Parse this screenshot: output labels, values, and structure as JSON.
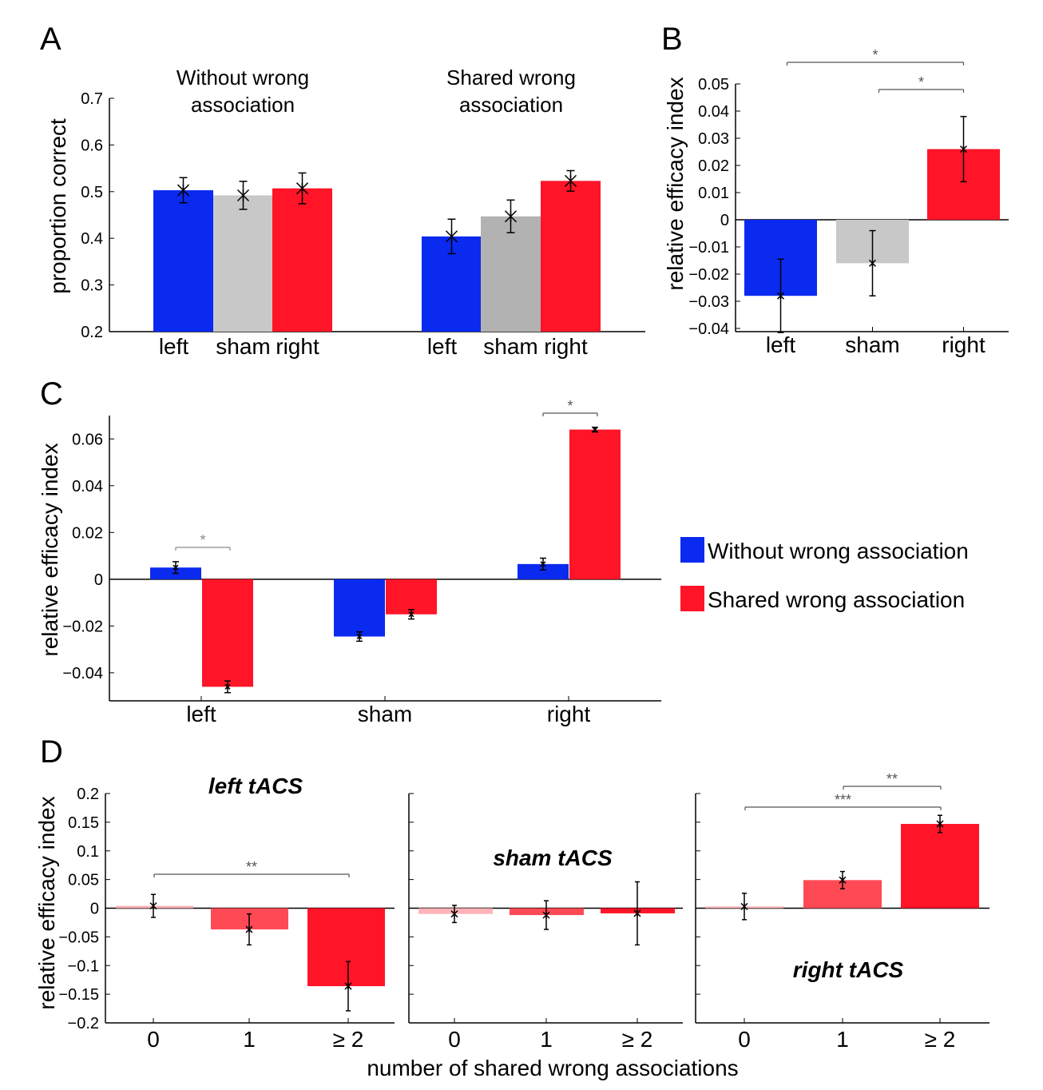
{
  "colors": {
    "blue": "#0A2AF0",
    "gray_light": "#C8C8C8",
    "gray_dark": "#B2B2B2",
    "red": "#FF1428",
    "red_mid": "#FF4A55",
    "red_light": "#FFB3B8",
    "sig_gray": "#8A8A8A"
  },
  "legend": [
    {
      "label": "Without wrong association",
      "color": "#0A2AF0"
    },
    {
      "label": "Shared wrong association",
      "color": "#FF1428"
    }
  ],
  "chart_data": [
    {
      "panel": "A",
      "type": "bar",
      "ylabel": "proportion correct",
      "ylim": [
        0.2,
        0.7
      ],
      "yticks": [
        "0.2",
        "0.3",
        "0.4",
        "0.5",
        "0.6",
        "0.7"
      ],
      "ytick_values": [
        0.2,
        0.3,
        0.4,
        0.5,
        0.6,
        0.7
      ],
      "groups": [
        {
          "title": [
            "Without wrong",
            "association"
          ],
          "categories": [
            "left",
            "sham",
            "right"
          ],
          "values": [
            0.503,
            0.492,
            0.507
          ],
          "errors": [
            0.027,
            0.03,
            0.033
          ],
          "colors": [
            "#0A2AF0",
            "#C8C8C8",
            "#FF1428"
          ]
        },
        {
          "title": [
            "Shared wrong",
            "association"
          ],
          "categories": [
            "left",
            "sham",
            "right"
          ],
          "values": [
            0.404,
            0.447,
            0.523
          ],
          "errors": [
            0.037,
            0.035,
            0.022
          ],
          "colors": [
            "#0A2AF0",
            "#B2B2B2",
            "#FF1428"
          ]
        }
      ]
    },
    {
      "panel": "B",
      "type": "bar",
      "ylabel": "relative efficacy index",
      "ylim": [
        -0.04,
        0.05
      ],
      "yticks": [
        "0.05",
        "0.04",
        "0.03",
        "0.02",
        "0.01",
        "0",
        "−0.01",
        "−0.02",
        "−0.03",
        "−0.04"
      ],
      "ytick_values": [
        0.05,
        0.04,
        0.03,
        0.02,
        0.01,
        0,
        -0.01,
        -0.02,
        -0.03,
        -0.04
      ],
      "categories": [
        "left",
        "sham",
        "right"
      ],
      "values": [
        -0.028,
        -0.016,
        0.026
      ],
      "errors": [
        0.0135,
        0.012,
        0.012
      ],
      "colors": [
        "#0A2AF0",
        "#C8C8C8",
        "#FF1428"
      ],
      "significance": [
        {
          "from": "left",
          "to": "right",
          "label": "*"
        },
        {
          "from": "sham",
          "to": "right",
          "label": "*"
        }
      ]
    },
    {
      "panel": "C",
      "type": "bar",
      "ylabel": "relative efficacy index",
      "ylim": [
        -0.052,
        0.07
      ],
      "yticks": [
        "0.06",
        "0.04",
        "0.02",
        "0",
        "−0.02",
        "−0.04"
      ],
      "ytick_values": [
        0.06,
        0.04,
        0.02,
        0,
        -0.02,
        -0.04
      ],
      "categories": [
        "left",
        "sham",
        "right"
      ],
      "series": [
        {
          "name": "Without wrong association",
          "values": [
            0.005,
            -0.0245,
            0.0065
          ],
          "errors": [
            0.0025,
            0.002,
            0.0025
          ],
          "color": "#0A2AF0"
        },
        {
          "name": "Shared wrong association",
          "values": [
            -0.046,
            -0.015,
            0.064
          ],
          "errors": [
            0.0025,
            0.002,
            0.001
          ],
          "color": "#FF1428"
        }
      ],
      "significance": [
        {
          "category": "left",
          "label": "*",
          "muted": true
        },
        {
          "category": "right",
          "label": "*",
          "muted": false
        }
      ]
    },
    {
      "panel": "D",
      "type": "bar",
      "ylabel": "relative efficacy index",
      "xlabel": "number of shared wrong associations",
      "ylim": [
        -0.2,
        0.2
      ],
      "yticks": [
        "0.2",
        "0.15",
        "0.1",
        "0.05",
        "0",
        "−0.05",
        "−0.1",
        "−0.15",
        "−0.2"
      ],
      "ytick_values": [
        0.2,
        0.15,
        0.1,
        0.05,
        0,
        -0.05,
        -0.1,
        -0.15,
        -0.2
      ],
      "categories": [
        "0",
        "1",
        "≥ 2"
      ],
      "colors": [
        "#FFB3B8",
        "#FF4A55",
        "#FF1428"
      ],
      "subplots": [
        {
          "title": "left tACS",
          "values": [
            0.004,
            -0.037,
            -0.136
          ],
          "errors": [
            0.02,
            0.027,
            0.043
          ],
          "significance": [
            {
              "from": 0,
              "to": 2,
              "label": "**"
            }
          ]
        },
        {
          "title": "sham tACS",
          "values": [
            -0.01,
            -0.012,
            -0.009
          ],
          "errors": [
            0.015,
            0.025,
            0.055
          ],
          "significance": []
        },
        {
          "title": "right tACS",
          "values": [
            0.003,
            0.049,
            0.147
          ],
          "errors": [
            0.023,
            0.015,
            0.015
          ],
          "significance": [
            {
              "from": 0,
              "to": 2,
              "label": "***"
            },
            {
              "from": 1,
              "to": 2,
              "label": "**"
            }
          ]
        }
      ]
    }
  ]
}
